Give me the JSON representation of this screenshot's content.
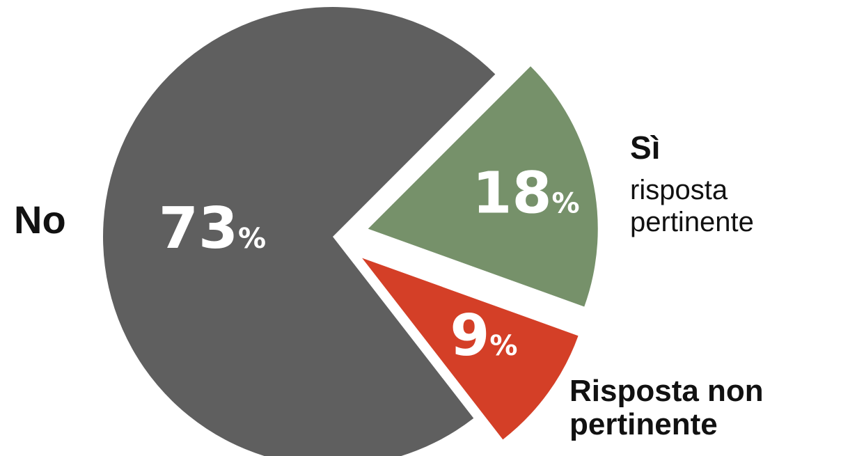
{
  "chart_data": {
    "type": "pie",
    "slices": [
      {
        "key": "no",
        "value": 73,
        "value_label": "73",
        "label": "No",
        "sublabel": "",
        "color": "#5f5f5f"
      },
      {
        "key": "si",
        "value": 18,
        "value_label": "18",
        "label": "Sì",
        "sublabel": "risposta pertinente",
        "color": "#76916a"
      },
      {
        "key": "non_pertinente",
        "value": 9,
        "value_label": "9",
        "label": "Risposta non pertinente",
        "sublabel": "",
        "color": "#d43f27"
      }
    ],
    "percent_sign": "%",
    "exploded": [
      "si",
      "non_pertinente"
    ]
  }
}
